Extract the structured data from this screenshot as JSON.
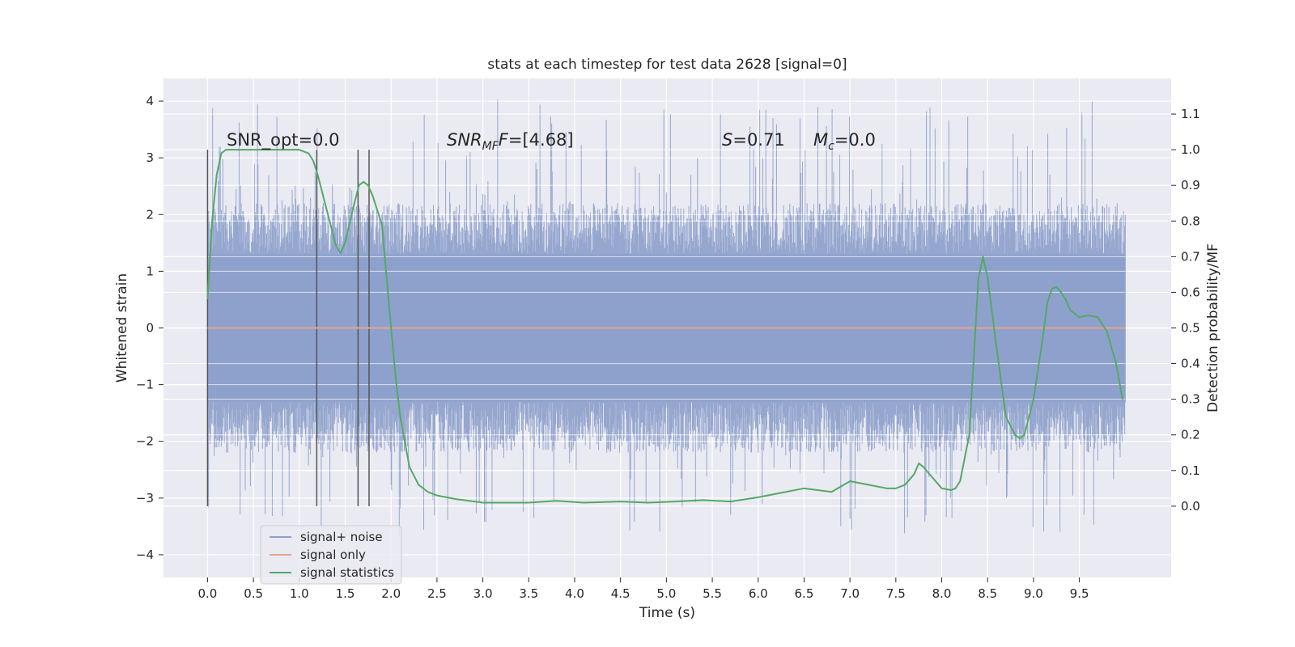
{
  "chart_data": {
    "type": "line",
    "title": "stats at each timestep for test data 2628 [signal=0]",
    "xlabel": "Time (s)",
    "ylabel": "Whitened strain",
    "y2label": "Detection probability/MF",
    "xlim": [
      -0.48,
      10.5
    ],
    "ylim": [
      -4.4,
      4.4
    ],
    "y2lim": [
      -0.2,
      1.2
    ],
    "x_ticks": [
      "0.0",
      "0.5",
      "1.0",
      "1.5",
      "2.0",
      "2.5",
      "3.0",
      "3.5",
      "4.0",
      "4.5",
      "5.0",
      "5.5",
      "6.0",
      "6.5",
      "7.0",
      "7.5",
      "8.0",
      "8.5",
      "9.0",
      "9.5"
    ],
    "y_ticks": [
      "4",
      "3",
      "2",
      "1",
      "0",
      "−1",
      "−2",
      "−3",
      "−4"
    ],
    "y2_ticks": [
      "1.1",
      "1.0",
      "0.9",
      "0.8",
      "0.7",
      "0.6",
      "0.5",
      "0.4",
      "0.3",
      "0.2",
      "0.1",
      "0.0"
    ],
    "grid": true,
    "legend_position": "bottom-left",
    "annotations": {
      "snr_opt": "SNR_opt=0.0",
      "snr_mf_sym": "SNR",
      "snr_mf_sub": "MF",
      "snr_mf_val": "=[4.68]",
      "s_sym": "S",
      "s_val": "=0.71",
      "mc_sym": "M",
      "mc_sub": "c",
      "mc_val": "=0.0"
    },
    "vertical_markers_s": [
      0.0,
      1.19,
      1.64,
      1.76
    ],
    "series": [
      {
        "name": "signal+ noise",
        "color": "#8da0cb",
        "axis": "left",
        "envelope_inner": [
          -1.3,
          1.3
        ],
        "envelope_outer": [
          -3.7,
          4.05
        ],
        "x_range": [
          0.0,
          10.0
        ]
      },
      {
        "name": "signal only",
        "color": "#e5a48e",
        "axis": "left",
        "x": [
          0.0,
          10.0
        ],
        "y": [
          0.0,
          0.0
        ]
      },
      {
        "name": "signal statistics",
        "color": "#55a868",
        "axis": "right",
        "x": [
          0.0,
          0.05,
          0.1,
          0.15,
          0.2,
          0.3,
          0.5,
          0.7,
          0.9,
          1.0,
          1.1,
          1.15,
          1.2,
          1.3,
          1.4,
          1.45,
          1.5,
          1.6,
          1.65,
          1.7,
          1.75,
          1.8,
          1.9,
          2.0,
          2.05,
          2.1,
          2.2,
          2.3,
          2.4,
          2.5,
          2.7,
          3.0,
          3.5,
          3.8,
          4.1,
          4.5,
          4.8,
          5.1,
          5.4,
          5.7,
          6.0,
          6.3,
          6.5,
          6.8,
          7.0,
          7.2,
          7.4,
          7.5,
          7.6,
          7.7,
          7.75,
          7.8,
          7.9,
          8.0,
          8.1,
          8.15,
          8.2,
          8.3,
          8.4,
          8.45,
          8.5,
          8.6,
          8.7,
          8.8,
          8.85,
          8.9,
          9.0,
          9.1,
          9.15,
          9.2,
          9.25,
          9.3,
          9.35,
          9.4,
          9.5,
          9.6,
          9.7,
          9.8,
          9.9,
          9.97
        ],
        "y": [
          0.58,
          0.8,
          0.93,
          0.99,
          1.0,
          1.0,
          1.0,
          1.0,
          1.0,
          1.0,
          0.99,
          0.97,
          0.93,
          0.83,
          0.73,
          0.71,
          0.74,
          0.85,
          0.9,
          0.91,
          0.9,
          0.87,
          0.79,
          0.5,
          0.36,
          0.25,
          0.11,
          0.06,
          0.04,
          0.03,
          0.02,
          0.01,
          0.01,
          0.015,
          0.01,
          0.013,
          0.01,
          0.013,
          0.017,
          0.013,
          0.025,
          0.04,
          0.05,
          0.04,
          0.07,
          0.06,
          0.05,
          0.05,
          0.06,
          0.09,
          0.12,
          0.11,
          0.08,
          0.05,
          0.045,
          0.05,
          0.07,
          0.2,
          0.64,
          0.7,
          0.64,
          0.44,
          0.25,
          0.2,
          0.19,
          0.2,
          0.3,
          0.47,
          0.57,
          0.61,
          0.615,
          0.6,
          0.58,
          0.55,
          0.53,
          0.535,
          0.53,
          0.49,
          0.4,
          0.3
        ]
      }
    ]
  }
}
